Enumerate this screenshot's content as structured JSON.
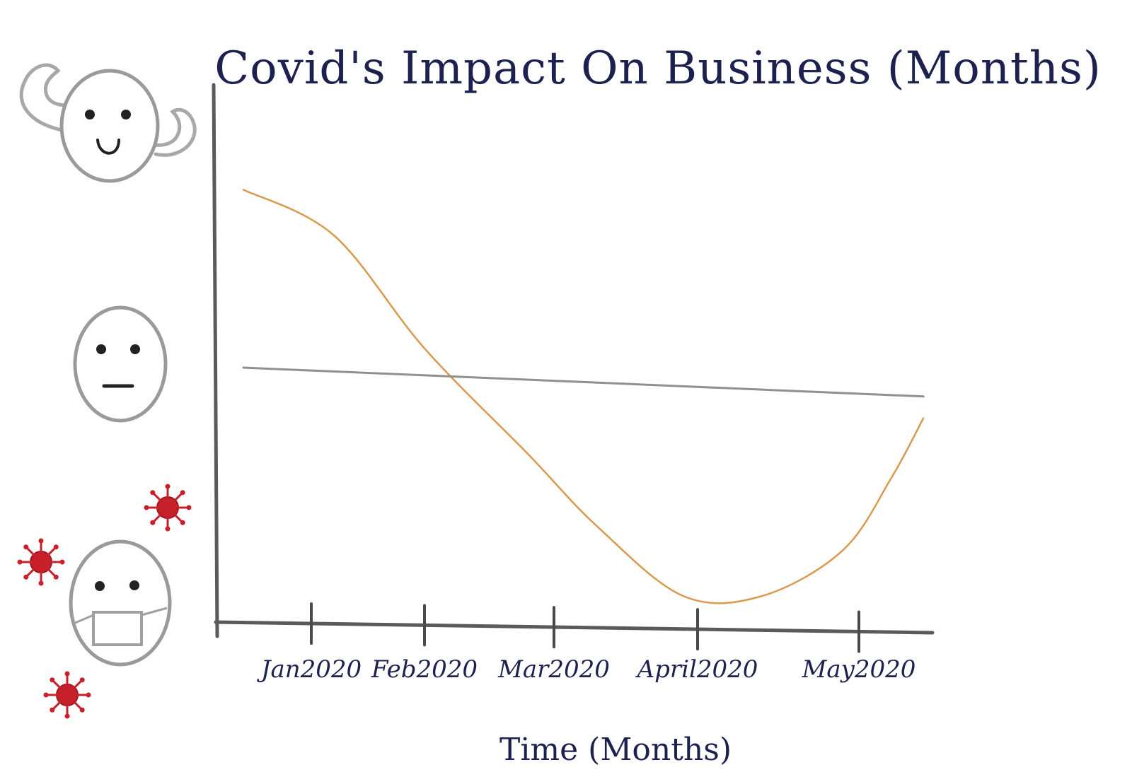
{
  "chart_data": {
    "type": "line",
    "title": "Covid's Impact On Business (Months)",
    "xlabel": "Time (Months)",
    "ylabel": "",
    "categories": [
      "Jan2020",
      "Feb2020",
      "Mar2020",
      "April2020",
      "May2020"
    ],
    "y_scale_icons": [
      "happy-strong-face",
      "neutral-face",
      "masked-face-with-virus"
    ],
    "ylim": [
      -1,
      1
    ],
    "grid": false,
    "series": [
      {
        "role": "business-impact",
        "color": "#d99a4e",
        "x": [
          -0.6,
          0.2,
          1.0,
          1.8,
          2.3,
          2.9,
          3.4,
          3.9,
          4.2,
          4.4
        ],
        "y": [
          0.74,
          0.55,
          0.08,
          -0.36,
          -0.66,
          -0.95,
          -0.95,
          -0.76,
          -0.46,
          -0.21
        ]
      },
      {
        "role": "reference",
        "color": "#8e9190",
        "x": [
          -0.6,
          4.4
        ],
        "y": [
          0.0,
          -0.12
        ]
      }
    ]
  }
}
